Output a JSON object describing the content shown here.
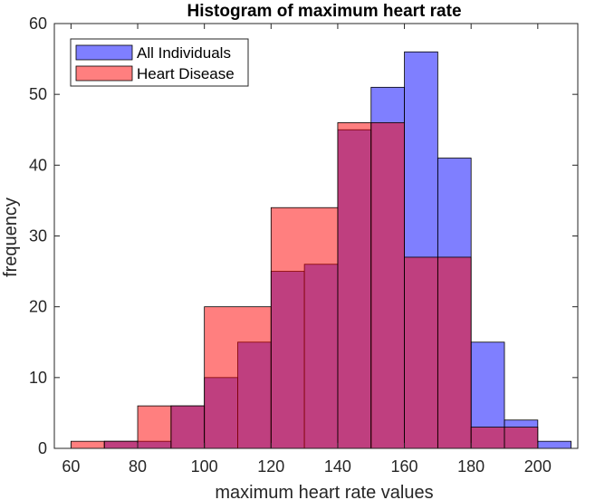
{
  "chart_data": {
    "type": "bar",
    "title": "Histogram of maximum heart rate",
    "xlabel": "maximum heart rate values",
    "ylabel": "frequency",
    "xlim": [
      55,
      212
    ],
    "ylim": [
      0,
      60
    ],
    "xticks": [
      60,
      80,
      100,
      120,
      140,
      160,
      180,
      200
    ],
    "yticks": [
      0,
      10,
      20,
      30,
      40,
      50,
      60
    ],
    "grid": false,
    "legend_position": "top-left",
    "series": [
      {
        "name": "All Individuals",
        "color": "#0000ff",
        "alpha": 0.5,
        "bins": [
          {
            "x0": 70,
            "x1": 80,
            "value": 1
          },
          {
            "x0": 80,
            "x1": 90,
            "value": 1
          },
          {
            "x0": 90,
            "x1": 100,
            "value": 6
          },
          {
            "x0": 100,
            "x1": 110,
            "value": 10
          },
          {
            "x0": 110,
            "x1": 120,
            "value": 15
          },
          {
            "x0": 120,
            "x1": 130,
            "value": 25
          },
          {
            "x0": 130,
            "x1": 140,
            "value": 26
          },
          {
            "x0": 140,
            "x1": 150,
            "value": 45
          },
          {
            "x0": 150,
            "x1": 160,
            "value": 51
          },
          {
            "x0": 160,
            "x1": 170,
            "value": 56
          },
          {
            "x0": 170,
            "x1": 180,
            "value": 41
          },
          {
            "x0": 180,
            "x1": 190,
            "value": 15
          },
          {
            "x0": 190,
            "x1": 200,
            "value": 4
          },
          {
            "x0": 200,
            "x1": 210,
            "value": 1
          }
        ]
      },
      {
        "name": "Heart Disease",
        "color": "#ff0000",
        "alpha": 0.5,
        "bins": [
          {
            "x0": 60,
            "x1": 70,
            "value": 1
          },
          {
            "x0": 70,
            "x1": 80,
            "value": 1
          },
          {
            "x0": 80,
            "x1": 90,
            "value": 6
          },
          {
            "x0": 90,
            "x1": 100,
            "value": 6
          },
          {
            "x0": 100,
            "x1": 120,
            "value": 20
          },
          {
            "x0": 120,
            "x1": 140,
            "value": 34
          },
          {
            "x0": 140,
            "x1": 150,
            "value": 46
          },
          {
            "x0": 150,
            "x1": 160,
            "value": 46
          },
          {
            "x0": 160,
            "x1": 170,
            "value": 27
          },
          {
            "x0": 170,
            "x1": 180,
            "value": 27
          },
          {
            "x0": 180,
            "x1": 190,
            "value": 3
          },
          {
            "x0": 190,
            "x1": 200,
            "value": 3
          }
        ]
      }
    ]
  }
}
